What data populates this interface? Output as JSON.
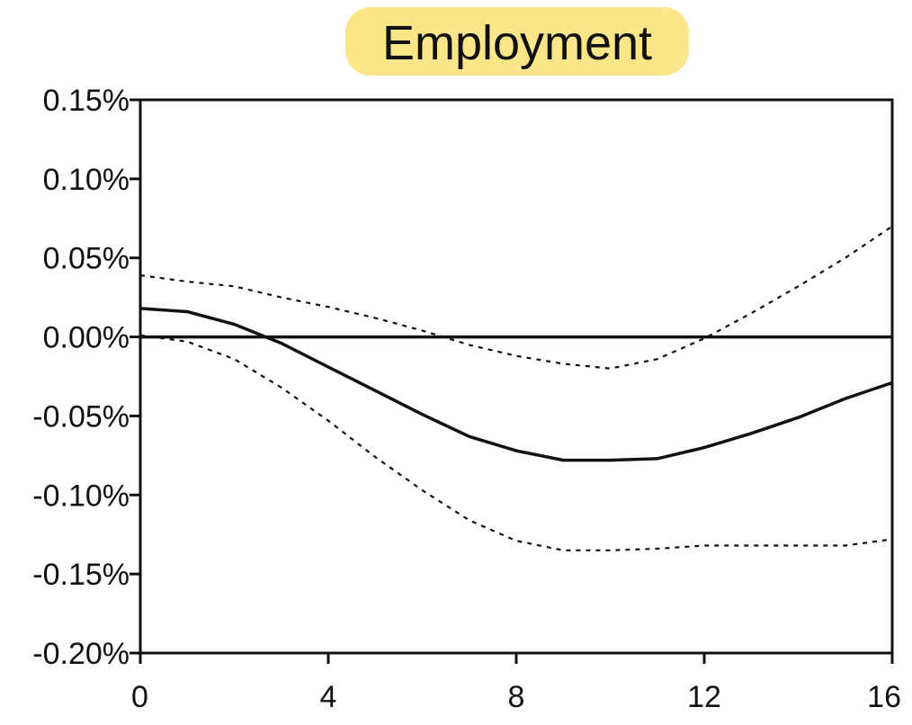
{
  "chart_data": {
    "type": "line",
    "title": "Employment",
    "title_highlight_color": "#fde68a",
    "xlabel": "",
    "ylabel": "",
    "xlim": [
      0,
      16
    ],
    "ylim": [
      -0.2,
      0.15
    ],
    "x_ticks": [
      0,
      4,
      8,
      12,
      16
    ],
    "x_tick_labels": [
      "0",
      "4",
      "8",
      "12",
      "16"
    ],
    "y_ticks": [
      0.15,
      0.1,
      0.05,
      0.0,
      -0.05,
      -0.1,
      -0.15,
      -0.2
    ],
    "y_tick_labels": [
      "0.15%",
      "0.10%",
      "0.05%",
      "0.00%",
      "-0.05%",
      "-0.10%",
      "-0.15%",
      "-0.20%"
    ],
    "grid": false,
    "zero_line": true,
    "x": [
      0,
      1,
      2,
      3,
      4,
      5,
      6,
      7,
      8,
      9,
      10,
      11,
      12,
      13,
      14,
      15,
      16
    ],
    "series": [
      {
        "style": "solid",
        "color": "#111111",
        "values": [
          0.018,
          0.016,
          0.008,
          -0.004,
          -0.019,
          -0.034,
          -0.049,
          -0.063,
          -0.072,
          -0.078,
          -0.078,
          -0.077,
          -0.07,
          -0.061,
          -0.051,
          -0.039,
          -0.029
        ]
      },
      {
        "style": "dotted",
        "color": "#111111",
        "values": [
          0.039,
          0.035,
          0.032,
          0.025,
          0.019,
          0.012,
          0.004,
          -0.005,
          -0.012,
          -0.017,
          -0.02,
          -0.014,
          -0.001,
          0.015,
          0.032,
          0.05,
          0.07
        ]
      },
      {
        "style": "dotted",
        "color": "#111111",
        "values": [
          0.001,
          -0.003,
          -0.014,
          -0.032,
          -0.053,
          -0.076,
          -0.097,
          -0.116,
          -0.129,
          -0.135,
          -0.135,
          -0.134,
          -0.132,
          -0.132,
          -0.132,
          -0.132,
          -0.128
        ]
      }
    ]
  }
}
